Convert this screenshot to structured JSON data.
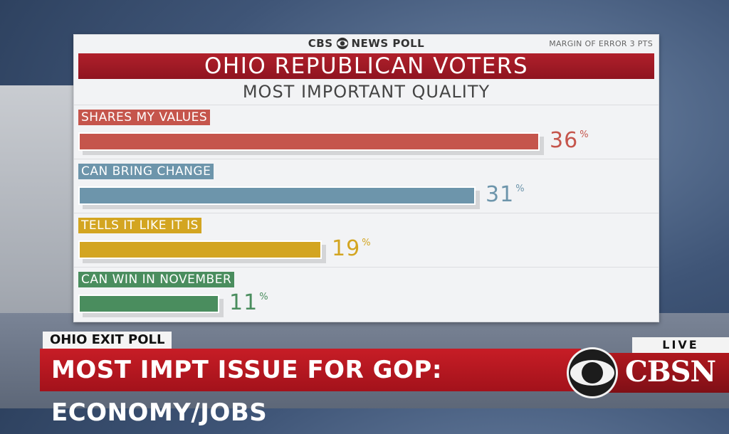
{
  "header": {
    "brand_prefix": "CBS",
    "brand_suffix": "NEWS POLL",
    "margin_of_error": "MARGIN OF ERROR 3 PTS",
    "title": "OHIO REPUBLICAN VOTERS",
    "subtitle": "MOST IMPORTANT QUALITY"
  },
  "chart_data": {
    "type": "bar",
    "title": "OHIO REPUBLICAN VOTERS",
    "subtitle": "MOST IMPORTANT QUALITY",
    "categories": [
      "SHARES MY VALUES",
      "CAN BRING CHANGE",
      "TELLS IT LIKE IT IS",
      "CAN WIN IN NOVEMBER"
    ],
    "values": [
      36,
      31,
      19,
      11
    ],
    "value_labels": [
      "36",
      "31",
      "19",
      "11"
    ],
    "unit": "%",
    "colors": [
      "#c5554c",
      "#6d95ab",
      "#d3a521",
      "#4a8d5e"
    ],
    "xlim": [
      0,
      40
    ]
  },
  "lower_third": {
    "label": "OHIO EXIT POLL",
    "headline": "MOST IMPT ISSUE FOR GOP: ECONOMY/JOBS",
    "live": "LIVE",
    "network": "CBSN"
  },
  "icons": {
    "brand": "cbs-eye-icon",
    "network": "cbs-eye-icon"
  }
}
